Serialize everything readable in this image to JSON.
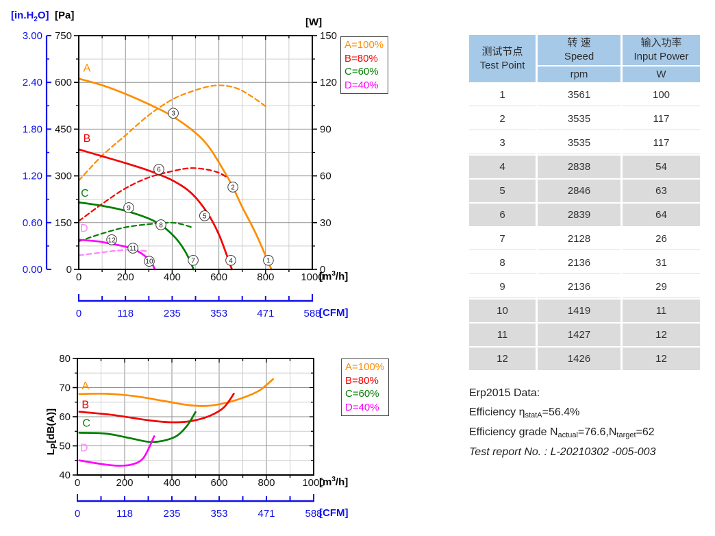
{
  "labels": {
    "inh2o_pre": "[in.H",
    "inh2o_sub": "2",
    "inh2o_post": "O]",
    "pa": "[Pa]",
    "w": "[W]",
    "m3h_pre": "[m",
    "m3h_sup": "3",
    "m3h_post": "/h]",
    "cfm": "[CFM]",
    "lp_pre": "L",
    "lp_sub": "P",
    "lp_post": "[dB(A)]"
  },
  "colors": {
    "blue_axis": "#0f0fe8",
    "orange": "#ff8c00",
    "red": "#f40000",
    "green": "#007f00",
    "magenta": "#ff00ff",
    "pink": "#ff82ff",
    "table_header_bg": "#a7c9e8",
    "table_shaded_row": "#dbdbdb"
  },
  "chart_data": [
    {
      "id": "pressure-vs-airflow",
      "type": "line",
      "grid": true,
      "legend_position": "outside-top-right",
      "x_axis": {
        "min": 0,
        "max": 1000,
        "major_ticks": [
          0,
          200,
          400,
          600,
          800,
          1000
        ],
        "minor_step": 100,
        "unit": "[m3/h]"
      },
      "y_left": {
        "min": 0,
        "max": 750,
        "major_ticks": [
          750,
          600,
          450,
          300,
          150,
          0
        ],
        "minor_step": 75,
        "unit": "[Pa]"
      },
      "y_left_secondary": {
        "unit": "[in.H2O]",
        "ticks": [
          "3.00",
          "2.40",
          "1.80",
          "1.20",
          "0.60",
          "0.00"
        ],
        "color": "#0f0fe8"
      },
      "y_right": {
        "min": 0,
        "max": 150,
        "major_ticks": [
          150,
          120,
          90,
          60,
          30,
          0
        ],
        "minor_step": 15,
        "unit": "[W]"
      },
      "x_secondary": {
        "unit": "[CFM]",
        "ticks": [
          "0",
          "118",
          "235",
          "353",
          "471",
          "588"
        ],
        "color": "#0f0fe8"
      },
      "legend": [
        {
          "label": "A=100%",
          "color": "#ff8c00"
        },
        {
          "label": "B=80%",
          "color": "#f40000"
        },
        {
          "label": "C=60%",
          "color": "#007f00"
        },
        {
          "label": "D=40%",
          "color": "#ff00ff"
        }
      ],
      "series": [
        {
          "name": "A-pressure",
          "color": "#ff8c00",
          "dash": false,
          "axis": "left",
          "points": [
            [
              0,
              612
            ],
            [
              100,
              591
            ],
            [
              200,
              563
            ],
            [
              300,
              530
            ],
            [
              400,
              492
            ],
            [
              500,
              438
            ],
            [
              560,
              390
            ],
            [
              620,
              318
            ],
            [
              660,
              264
            ],
            [
              700,
              200
            ],
            [
              760,
              112
            ],
            [
              825,
              0
            ]
          ]
        },
        {
          "name": "A-input-power",
          "color": "#ff8c00",
          "dash": true,
          "axis": "right",
          "points": [
            [
              0,
              57
            ],
            [
              100,
              73
            ],
            [
              200,
              86
            ],
            [
              300,
              99
            ],
            [
              400,
              109
            ],
            [
              480,
              114
            ],
            [
              560,
              117.5
            ],
            [
              620,
              118
            ],
            [
              680,
              116
            ],
            [
              740,
              111
            ],
            [
              806,
              104
            ]
          ]
        },
        {
          "name": "B-pressure",
          "color": "#f40000",
          "dash": false,
          "axis": "left",
          "points": [
            [
              0,
              385
            ],
            [
              100,
              363
            ],
            [
              200,
              341
            ],
            [
              300,
              317
            ],
            [
              400,
              286
            ],
            [
              480,
              246
            ],
            [
              550,
              182
            ],
            [
              600,
              112
            ],
            [
              645,
              22
            ],
            [
              656,
              0
            ]
          ]
        },
        {
          "name": "B-input-power",
          "color": "#f40000",
          "dash": true,
          "axis": "right",
          "points": [
            [
              0,
              31
            ],
            [
              100,
              42
            ],
            [
              200,
              52
            ],
            [
              300,
              59
            ],
            [
              400,
              63
            ],
            [
              480,
              65
            ],
            [
              550,
              64
            ],
            [
              600,
              62
            ],
            [
              636,
              59
            ]
          ]
        },
        {
          "name": "C-pressure",
          "color": "#007f00",
          "dash": false,
          "axis": "left",
          "points": [
            [
              0,
              215
            ],
            [
              100,
              204
            ],
            [
              200,
              188
            ],
            [
              300,
              163
            ],
            [
              360,
              138
            ],
            [
              420,
              96
            ],
            [
              460,
              52
            ],
            [
              492,
              0
            ]
          ]
        },
        {
          "name": "C-input-power",
          "color": "#007f00",
          "dash": true,
          "axis": "right",
          "points": [
            [
              0,
              18
            ],
            [
              100,
              23
            ],
            [
              200,
              27
            ],
            [
              300,
              29
            ],
            [
              390,
              30
            ],
            [
              440,
              29
            ],
            [
              484,
              27
            ]
          ]
        },
        {
          "name": "D-pressure",
          "color": "#ff00ff",
          "dash": false,
          "axis": "left",
          "points": [
            [
              0,
              95
            ],
            [
              80,
              90
            ],
            [
              140,
              82
            ],
            [
              200,
              73
            ],
            [
              240,
              63
            ],
            [
              280,
              45
            ],
            [
              310,
              23
            ],
            [
              326,
              0
            ]
          ]
        },
        {
          "name": "D-input-power",
          "color": "#ff82ff",
          "dash": true,
          "axis": "right",
          "points": [
            [
              0,
              9
            ],
            [
              80,
              10.5
            ],
            [
              160,
              12
            ],
            [
              230,
              12.6
            ],
            [
              300,
              11.5
            ]
          ]
        }
      ],
      "curve_labels": [
        {
          "text": "A",
          "x": 35,
          "y": 645,
          "color": "#ff8c00"
        },
        {
          "text": "B",
          "x": 35,
          "y": 420,
          "color": "#f40000"
        },
        {
          "text": "C",
          "x": 26,
          "y": 244,
          "color": "#007f00"
        },
        {
          "text": "D",
          "x": 23,
          "y": 132,
          "color": "#ff82ff"
        }
      ],
      "point_markers": [
        {
          "label": "1",
          "x": 812,
          "y": 29
        },
        {
          "label": "2",
          "x": 660,
          "y": 264
        },
        {
          "label": "3",
          "x": 405,
          "y": 501
        },
        {
          "label": "4",
          "x": 651,
          "y": 29
        },
        {
          "label": "5",
          "x": 539,
          "y": 172
        },
        {
          "label": "6",
          "x": 343,
          "y": 321
        },
        {
          "label": "7",
          "x": 490,
          "y": 29
        },
        {
          "label": "8",
          "x": 352,
          "y": 143
        },
        {
          "label": "9",
          "x": 214,
          "y": 198
        },
        {
          "label": "10",
          "x": 302,
          "y": 26
        },
        {
          "label": "11",
          "x": 232,
          "y": 68
        },
        {
          "label": "12",
          "x": 141,
          "y": 95
        }
      ]
    },
    {
      "id": "noise-vs-airflow",
      "type": "line",
      "grid": true,
      "legend_position": "outside-top-right",
      "x_axis": {
        "min": 0,
        "max": 1000,
        "major_ticks": [
          0,
          200,
          400,
          600,
          800,
          1000
        ],
        "minor_step": 100,
        "unit": "[m3/h]"
      },
      "y_axis": {
        "min": 40,
        "max": 80,
        "major_ticks": [
          80,
          70,
          60,
          50,
          40
        ],
        "minor_step": 5,
        "unit": "LP[dB(A)]"
      },
      "x_secondary": {
        "unit": "[CFM]",
        "ticks": [
          "0",
          "118",
          "235",
          "353",
          "471",
          "588"
        ],
        "color": "#0f0fe8"
      },
      "legend": [
        {
          "label": "A=100%",
          "color": "#ff8c00"
        },
        {
          "label": "B=80%",
          "color": "#f40000"
        },
        {
          "label": "C=60%",
          "color": "#007f00"
        },
        {
          "label": "D=40%",
          "color": "#ff00ff"
        }
      ],
      "series": [
        {
          "name": "A-noise",
          "color": "#ff8c00",
          "dash": false,
          "axis": "left",
          "points": [
            [
              8,
              67.8
            ],
            [
              120,
              67.9
            ],
            [
              240,
              67.1
            ],
            [
              360,
              65.5
            ],
            [
              470,
              64.0
            ],
            [
              545,
              63.7
            ],
            [
              620,
              64.6
            ],
            [
              700,
              66.5
            ],
            [
              770,
              69.0
            ],
            [
              828,
              72.9
            ]
          ]
        },
        {
          "name": "B-noise",
          "color": "#f40000",
          "dash": false,
          "axis": "left",
          "points": [
            [
              8,
              61.7
            ],
            [
              150,
              60.6
            ],
            [
              300,
              58.8
            ],
            [
              400,
              58.1
            ],
            [
              480,
              58.5
            ],
            [
              560,
              60.3
            ],
            [
              620,
              63.2
            ],
            [
              662,
              67.9
            ]
          ]
        },
        {
          "name": "C-noise",
          "color": "#007f00",
          "dash": false,
          "axis": "left",
          "points": [
            [
              8,
              54.5
            ],
            [
              120,
              54.2
            ],
            [
              220,
              52.7
            ],
            [
              300,
              51.4
            ],
            [
              360,
              51.7
            ],
            [
              420,
              53.4
            ],
            [
              465,
              57.0
            ],
            [
              500,
              61.6
            ]
          ]
        },
        {
          "name": "D-noise",
          "color": "#ff00ff",
          "dash": false,
          "axis": "left",
          "points": [
            [
              8,
              45.0
            ],
            [
              100,
              43.8
            ],
            [
              170,
              43.2
            ],
            [
              230,
              43.6
            ],
            [
              280,
              45.9
            ],
            [
              325,
              53.3
            ]
          ]
        }
      ],
      "curve_labels": [
        {
          "text": "A",
          "x": 34,
          "y": 70.6,
          "color": "#ff8c00"
        },
        {
          "text": "B",
          "x": 34,
          "y": 64.1,
          "color": "#f40000"
        },
        {
          "text": "C",
          "x": 38,
          "y": 57.8,
          "color": "#007f00"
        },
        {
          "text": "D",
          "x": 28,
          "y": 49.3,
          "color": "#ff82ff"
        }
      ],
      "point_markers": []
    }
  ],
  "table": {
    "header": {
      "col1_cn": "测试节点",
      "col1_en": "Test Point",
      "col2_cn": "转 速",
      "col2_en": "Speed",
      "col2_unit": "rpm",
      "col3_cn": "输入功率",
      "col3_en": "Input Power",
      "col3_unit": "W"
    },
    "rows": [
      {
        "point": "1",
        "speed": "3561",
        "power": "100"
      },
      {
        "point": "2",
        "speed": "3535",
        "power": "117"
      },
      {
        "point": "3",
        "speed": "3535",
        "power": "117"
      },
      {
        "point": "4",
        "speed": "2838",
        "power": "54"
      },
      {
        "point": "5",
        "speed": "2846",
        "power": "63"
      },
      {
        "point": "6",
        "speed": "2839",
        "power": "64"
      },
      {
        "point": "7",
        "speed": "2128",
        "power": "26"
      },
      {
        "point": "8",
        "speed": "2136",
        "power": "31"
      },
      {
        "point": "9",
        "speed": "2136",
        "power": "29"
      },
      {
        "point": "10",
        "speed": "1419",
        "power": "11"
      },
      {
        "point": "11",
        "speed": "1427",
        "power": "12"
      },
      {
        "point": "12",
        "speed": "1426",
        "power": "12"
      }
    ],
    "shaded_rows": [
      4,
      5,
      6,
      10,
      11,
      12
    ]
  },
  "erp": {
    "title": "Erp2015  Data:",
    "eff_pre": "Efficiency η",
    "eff_sub": "statA",
    "eff_post": "=56.4%",
    "grade_pre": "Efficiency grade N",
    "grade_sub1": "actual",
    "grade_mid": "=76.6,N",
    "grade_sub2": "target",
    "grade_post": "=62",
    "report": "Test report No.  : L-20210302 -005-003"
  }
}
